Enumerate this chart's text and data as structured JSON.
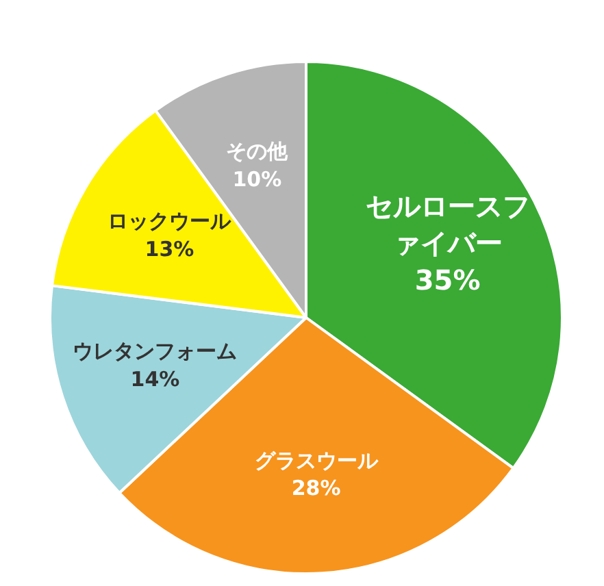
{
  "chart_data": {
    "type": "pie",
    "categories": [
      "セルロースファイバー",
      "グラスウール",
      "ウレタンフォーム",
      "ロックウール",
      "その他"
    ],
    "values": [
      35,
      28,
      14,
      13,
      10
    ],
    "colors": [
      "#3aaa35",
      "#f7941d",
      "#9dd5dc",
      "#fff200",
      "#b5b5b5"
    ],
    "value_labels": [
      "35%",
      "28%",
      "14%",
      "13%",
      "10%"
    ],
    "legend": false
  }
}
